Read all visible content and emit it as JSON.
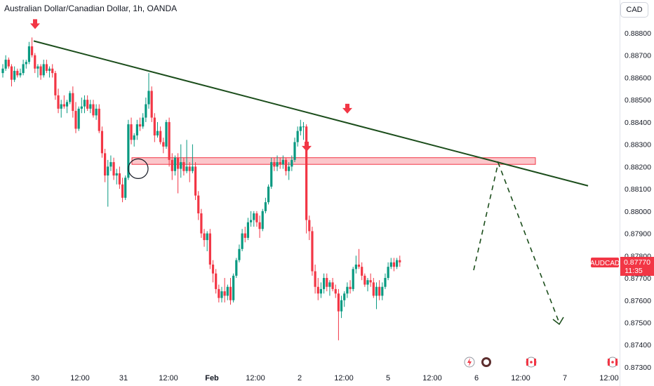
{
  "header": {
    "title": "Australian Dollar/Canadian Dollar, 1h, OANDA",
    "currency": "CAD"
  },
  "price_tag": {
    "symbol": "AUDCAD",
    "price": "0.87770",
    "countdown": "11:35",
    "color": "#f23645"
  },
  "icons": [
    "lightning-icon",
    "flag-icon",
    "canada-flag-icon",
    "canada-flag-icon"
  ],
  "chart_data": {
    "type": "candlestick",
    "title": "Australian Dollar/Canadian Dollar, 1h, OANDA",
    "ylim": [
      0.873,
      0.8888
    ],
    "y_ticks": [
      "0.88800",
      "0.88700",
      "0.88600",
      "0.88500",
      "0.88400",
      "0.88300",
      "0.88200",
      "0.88100",
      "0.88000",
      "0.87900",
      "0.87800",
      "0.87700",
      "0.87600",
      "0.87500",
      "0.87400",
      "0.87300"
    ],
    "x_ticks": [
      "30",
      "12:00",
      "31",
      "12:00",
      "Feb",
      "12:00",
      "2",
      "12:00",
      "5",
      "12:00",
      "6",
      "12:00",
      "7",
      "12:00"
    ],
    "colors": {
      "up": "#089981",
      "down": "#f23645",
      "trend": "#1b4d1b",
      "zone": "#f23645"
    },
    "grid": false,
    "trendline": {
      "from_bar": 0,
      "from_price": 0.8878,
      "to_bar": 161,
      "to_price": 0.8812
    },
    "resistance_zone": {
      "low": 0.8821,
      "high": 0.8824
    },
    "markers": [
      {
        "type": "arrow-down",
        "bar": 0,
        "price": 0.8878
      },
      {
        "type": "arrow-down",
        "bar": 84,
        "price": 0.8823
      },
      {
        "type": "arrow-down",
        "bar": 96,
        "price": 0.884
      },
      {
        "type": "circle",
        "bar": 38,
        "price": 0.882
      }
    ],
    "projection": [
      {
        "bar": 133,
        "price": 0.8778
      },
      {
        "bar": 140,
        "price": 0.88215
      },
      {
        "bar": 148,
        "price": 0.878
      },
      {
        "bar": 154,
        "price": 0.875
      }
    ],
    "candles": [
      [
        0.8862,
        0.8866,
        0.886,
        0.8864
      ],
      [
        0.8864,
        0.887,
        0.8863,
        0.8868
      ],
      [
        0.8868,
        0.8869,
        0.8864,
        0.8865
      ],
      [
        0.8865,
        0.8866,
        0.8856,
        0.8859
      ],
      [
        0.8859,
        0.8865,
        0.8858,
        0.8863
      ],
      [
        0.8863,
        0.8864,
        0.886,
        0.8861
      ],
      [
        0.8861,
        0.8864,
        0.886,
        0.8862
      ],
      [
        0.8862,
        0.8868,
        0.8861,
        0.8866
      ],
      [
        0.8866,
        0.8868,
        0.8864,
        0.8867
      ],
      [
        0.8867,
        0.8876,
        0.8866,
        0.8874
      ],
      [
        0.8874,
        0.8878,
        0.8869,
        0.887
      ],
      [
        0.887,
        0.8871,
        0.8862,
        0.8864
      ],
      [
        0.8864,
        0.8866,
        0.886,
        0.8865
      ],
      [
        0.8865,
        0.8866,
        0.8859,
        0.8861
      ],
      [
        0.8861,
        0.8868,
        0.886,
        0.8866
      ],
      [
        0.8866,
        0.8868,
        0.8862,
        0.8863
      ],
      [
        0.8863,
        0.8865,
        0.886,
        0.8864
      ],
      [
        0.8864,
        0.8866,
        0.886,
        0.8862
      ],
      [
        0.8862,
        0.8863,
        0.885,
        0.8852
      ],
      [
        0.8852,
        0.8855,
        0.8844,
        0.8846
      ],
      [
        0.8846,
        0.885,
        0.8842,
        0.8848
      ],
      [
        0.8848,
        0.8852,
        0.8846,
        0.8847
      ],
      [
        0.8847,
        0.885,
        0.8844,
        0.8849
      ],
      [
        0.8849,
        0.8854,
        0.8848,
        0.8853
      ],
      [
        0.8853,
        0.8856,
        0.8842,
        0.8845
      ],
      [
        0.8845,
        0.8849,
        0.8835,
        0.8837
      ],
      [
        0.8837,
        0.8847,
        0.8836,
        0.8846
      ],
      [
        0.8846,
        0.8851,
        0.8844,
        0.8847
      ],
      [
        0.8847,
        0.8852,
        0.8844,
        0.885
      ],
      [
        0.885,
        0.8852,
        0.8845,
        0.8846
      ],
      [
        0.8846,
        0.885,
        0.8844,
        0.8848
      ],
      [
        0.8848,
        0.885,
        0.8842,
        0.8843
      ],
      [
        0.8843,
        0.8848,
        0.8841,
        0.8846
      ],
      [
        0.8846,
        0.8848,
        0.8835,
        0.8836
      ],
      [
        0.8836,
        0.8838,
        0.8824,
        0.8826
      ],
      [
        0.8826,
        0.8828,
        0.8813,
        0.8816
      ],
      [
        0.8816,
        0.8823,
        0.8802,
        0.882
      ],
      [
        0.882,
        0.8825,
        0.8818,
        0.8822
      ],
      [
        0.8822,
        0.8824,
        0.8814,
        0.8816
      ],
      [
        0.8816,
        0.8819,
        0.8812,
        0.8817
      ],
      [
        0.8817,
        0.882,
        0.881,
        0.8812
      ],
      [
        0.8812,
        0.8815,
        0.8804,
        0.8806
      ],
      [
        0.8806,
        0.8816,
        0.8805,
        0.8815
      ],
      [
        0.8815,
        0.8841,
        0.8814,
        0.8839
      ],
      [
        0.8839,
        0.8842,
        0.883,
        0.8832
      ],
      [
        0.8832,
        0.8835,
        0.8829,
        0.8834
      ],
      [
        0.8834,
        0.8841,
        0.8832,
        0.8839
      ],
      [
        0.8839,
        0.8842,
        0.8836,
        0.8838
      ],
      [
        0.8838,
        0.8844,
        0.8837,
        0.8842
      ],
      [
        0.8842,
        0.8851,
        0.884,
        0.8848
      ],
      [
        0.8848,
        0.8862,
        0.8846,
        0.8854
      ],
      [
        0.8854,
        0.8856,
        0.884,
        0.8842
      ],
      [
        0.8842,
        0.8844,
        0.8831,
        0.8834
      ],
      [
        0.8834,
        0.884,
        0.8833,
        0.8836
      ],
      [
        0.8836,
        0.8838,
        0.883,
        0.8831
      ],
      [
        0.8831,
        0.8833,
        0.8826,
        0.8829
      ],
      [
        0.8829,
        0.8841,
        0.8828,
        0.884
      ],
      [
        0.884,
        0.8842,
        0.882,
        0.8823
      ],
      [
        0.8823,
        0.8826,
        0.8814,
        0.8818
      ],
      [
        0.8818,
        0.8825,
        0.8816,
        0.8824
      ],
      [
        0.8824,
        0.8826,
        0.8808,
        0.8819
      ],
      [
        0.8819,
        0.883,
        0.8815,
        0.8822
      ],
      [
        0.8822,
        0.8824,
        0.8816,
        0.8818
      ],
      [
        0.8818,
        0.8832,
        0.8817,
        0.882
      ],
      [
        0.882,
        0.8822,
        0.8813,
        0.8818
      ],
      [
        0.8818,
        0.883,
        0.8817,
        0.882
      ],
      [
        0.882,
        0.8822,
        0.8805,
        0.8807
      ],
      [
        0.8807,
        0.8809,
        0.8796,
        0.8799
      ],
      [
        0.8799,
        0.8801,
        0.8788,
        0.879
      ],
      [
        0.879,
        0.8792,
        0.8784,
        0.8787
      ],
      [
        0.8787,
        0.8791,
        0.8782,
        0.879
      ],
      [
        0.879,
        0.8792,
        0.8774,
        0.8776
      ],
      [
        0.8776,
        0.8778,
        0.8768,
        0.8772
      ],
      [
        0.8772,
        0.8774,
        0.8763,
        0.8765
      ],
      [
        0.8765,
        0.8767,
        0.8759,
        0.8761
      ],
      [
        0.8761,
        0.8766,
        0.8759,
        0.8764
      ],
      [
        0.8764,
        0.877,
        0.8759,
        0.8762
      ],
      [
        0.8762,
        0.8767,
        0.876,
        0.8766
      ],
      [
        0.8766,
        0.877,
        0.8758,
        0.876
      ],
      [
        0.876,
        0.8772,
        0.8759,
        0.8771
      ],
      [
        0.8771,
        0.8779,
        0.877,
        0.8778
      ],
      [
        0.8778,
        0.8785,
        0.8777,
        0.8783
      ],
      [
        0.8783,
        0.8792,
        0.8782,
        0.879
      ],
      [
        0.879,
        0.8793,
        0.8786,
        0.8788
      ],
      [
        0.8788,
        0.8797,
        0.8787,
        0.8795
      ],
      [
        0.8795,
        0.88,
        0.8793,
        0.8796
      ],
      [
        0.8796,
        0.88,
        0.8793,
        0.8799
      ],
      [
        0.8799,
        0.88,
        0.8793,
        0.8795
      ],
      [
        0.8795,
        0.8798,
        0.8788,
        0.8792
      ],
      [
        0.8792,
        0.8801,
        0.8791,
        0.88
      ],
      [
        0.88,
        0.8806,
        0.8799,
        0.8804
      ],
      [
        0.8804,
        0.8812,
        0.8803,
        0.8811
      ],
      [
        0.8811,
        0.8824,
        0.881,
        0.8822
      ],
      [
        0.8822,
        0.8824,
        0.8818,
        0.882
      ],
      [
        0.882,
        0.8825,
        0.8818,
        0.8822
      ],
      [
        0.8822,
        0.8824,
        0.8819,
        0.8821
      ],
      [
        0.8821,
        0.8825,
        0.8819,
        0.8823
      ],
      [
        0.8823,
        0.8824,
        0.8816,
        0.8818
      ],
      [
        0.8818,
        0.8822,
        0.8814,
        0.882
      ],
      [
        0.882,
        0.8825,
        0.8818,
        0.8823
      ],
      [
        0.8823,
        0.8833,
        0.8822,
        0.8831
      ],
      [
        0.8831,
        0.8838,
        0.8829,
        0.8836
      ],
      [
        0.8836,
        0.8841,
        0.8834,
        0.8838
      ],
      [
        0.8838,
        0.884,
        0.8832,
        0.8838
      ],
      [
        0.8838,
        0.8839,
        0.879,
        0.8796
      ],
      [
        0.8796,
        0.8798,
        0.8787,
        0.8791
      ],
      [
        0.8791,
        0.8793,
        0.8771,
        0.8773
      ],
      [
        0.8773,
        0.8776,
        0.8763,
        0.8766
      ],
      [
        0.8766,
        0.877,
        0.876,
        0.8763
      ],
      [
        0.8763,
        0.8768,
        0.8761,
        0.8765
      ],
      [
        0.8765,
        0.8772,
        0.8763,
        0.877
      ],
      [
        0.877,
        0.8772,
        0.8764,
        0.8766
      ],
      [
        0.8766,
        0.8769,
        0.8762,
        0.8768
      ],
      [
        0.8768,
        0.877,
        0.8764,
        0.8765
      ],
      [
        0.8765,
        0.8767,
        0.8761,
        0.8763
      ],
      [
        0.8763,
        0.8765,
        0.8742,
        0.8755
      ],
      [
        0.8755,
        0.8762,
        0.8752,
        0.876
      ],
      [
        0.876,
        0.8764,
        0.8757,
        0.8763
      ],
      [
        0.8763,
        0.8768,
        0.8761,
        0.8766
      ],
      [
        0.8766,
        0.8769,
        0.8763,
        0.8765
      ],
      [
        0.8765,
        0.8775,
        0.8764,
        0.8774
      ],
      [
        0.8774,
        0.878,
        0.8772,
        0.8776
      ],
      [
        0.8776,
        0.8783,
        0.8774,
        0.8775
      ],
      [
        0.8775,
        0.8777,
        0.8769,
        0.8771
      ],
      [
        0.8771,
        0.8772,
        0.8766,
        0.8767
      ],
      [
        0.8767,
        0.877,
        0.8764,
        0.8769
      ],
      [
        0.8769,
        0.8772,
        0.8766,
        0.8768
      ],
      [
        0.8768,
        0.877,
        0.8761,
        0.8762
      ],
      [
        0.8762,
        0.8768,
        0.8756,
        0.8766
      ],
      [
        0.8766,
        0.8769,
        0.876,
        0.8762
      ],
      [
        0.8762,
        0.8768,
        0.876,
        0.8766
      ],
      [
        0.8766,
        0.8772,
        0.8765,
        0.877
      ],
      [
        0.877,
        0.8777,
        0.8769,
        0.8775
      ],
      [
        0.8775,
        0.8779,
        0.8774,
        0.8777
      ],
      [
        0.8777,
        0.8779,
        0.8773,
        0.8775
      ],
      [
        0.8775,
        0.8779,
        0.8774,
        0.8778
      ],
      [
        0.8778,
        0.878,
        0.8775,
        0.8777
      ]
    ]
  }
}
